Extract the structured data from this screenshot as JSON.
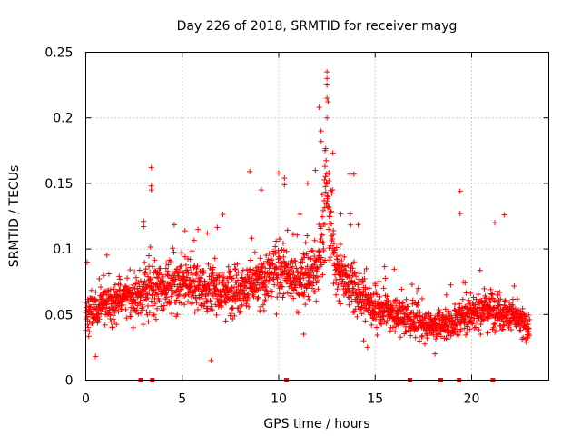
{
  "chart_data": {
    "type": "scatter",
    "title": "Day 226 of 2018, SRMTID for receiver mayg",
    "xlabel": "GPS time / hours",
    "ylabel": "SRMTID / TECUs",
    "xlim": [
      0,
      24
    ],
    "ylim": [
      0,
      0.25
    ],
    "xticks": [
      0,
      5,
      10,
      15,
      20
    ],
    "xtick_labels": [
      "0",
      "5",
      "10",
      "15",
      "20"
    ],
    "yticks": [
      0,
      0.05,
      0.1,
      0.15,
      0.2,
      0.25
    ],
    "ytick_labels": [
      "0",
      "0.05",
      "0.1",
      "0.15",
      "0.2",
      "0.25"
    ],
    "grid": true,
    "marker": "+",
    "color": "#ff0000",
    "x_range_data": [
      0,
      23
    ],
    "trend": [
      [
        0,
        0.05
      ],
      [
        1,
        0.058
      ],
      [
        2,
        0.062
      ],
      [
        3,
        0.066
      ],
      [
        4,
        0.072
      ],
      [
        5,
        0.075
      ],
      [
        6,
        0.072
      ],
      [
        7,
        0.068
      ],
      [
        8,
        0.07
      ],
      [
        9,
        0.074
      ],
      [
        10,
        0.085
      ],
      [
        11,
        0.075
      ],
      [
        12,
        0.085
      ],
      [
        12.5,
        0.14
      ],
      [
        13,
        0.085
      ],
      [
        14,
        0.07
      ],
      [
        15,
        0.055
      ],
      [
        16,
        0.05
      ],
      [
        17,
        0.045
      ],
      [
        18,
        0.042
      ],
      [
        19,
        0.043
      ],
      [
        20,
        0.052
      ],
      [
        21,
        0.055
      ],
      [
        22,
        0.05
      ],
      [
        23,
        0.04
      ]
    ],
    "notable_points": [
      {
        "x": 3.4,
        "y": 0.162
      },
      {
        "x": 3.4,
        "y": 0.148
      },
      {
        "x": 3.4,
        "y": 0.145
      },
      {
        "x": 3.0,
        "y": 0.121
      },
      {
        "x": 3.0,
        "y": 0.117
      },
      {
        "x": 8.5,
        "y": 0.159
      },
      {
        "x": 9.1,
        "y": 0.145
      },
      {
        "x": 10.0,
        "y": 0.158
      },
      {
        "x": 10.3,
        "y": 0.154
      },
      {
        "x": 10.3,
        "y": 0.149
      },
      {
        "x": 11.5,
        "y": 0.15
      },
      {
        "x": 11.9,
        "y": 0.16
      },
      {
        "x": 12.1,
        "y": 0.208
      },
      {
        "x": 12.2,
        "y": 0.19
      },
      {
        "x": 12.2,
        "y": 0.182
      },
      {
        "x": 12.5,
        "y": 0.235
      },
      {
        "x": 12.5,
        "y": 0.23
      },
      {
        "x": 12.5,
        "y": 0.225
      },
      {
        "x": 12.5,
        "y": 0.215
      },
      {
        "x": 12.5,
        "y": 0.2
      },
      {
        "x": 12.4,
        "y": 0.175
      },
      {
        "x": 12.4,
        "y": 0.163
      },
      {
        "x": 12.6,
        "y": 0.158
      },
      {
        "x": 12.6,
        "y": 0.152
      },
      {
        "x": 13.7,
        "y": 0.157
      },
      {
        "x": 13.9,
        "y": 0.157
      },
      {
        "x": 19.4,
        "y": 0.144
      },
      {
        "x": 19.4,
        "y": 0.127
      },
      {
        "x": 21.2,
        "y": 0.12
      },
      {
        "x": 21.7,
        "y": 0.126
      },
      {
        "x": 14.4,
        "y": 0.03
      },
      {
        "x": 14.6,
        "y": 0.025
      },
      {
        "x": 18.1,
        "y": 0.02
      },
      {
        "x": 11.3,
        "y": 0.035
      },
      {
        "x": 0.5,
        "y": 0.018
      },
      {
        "x": 6.5,
        "y": 0.015
      }
    ],
    "gap_markers_x": [
      2.85,
      3.45,
      10.4,
      16.8,
      18.4,
      19.35,
      21.1
    ]
  }
}
